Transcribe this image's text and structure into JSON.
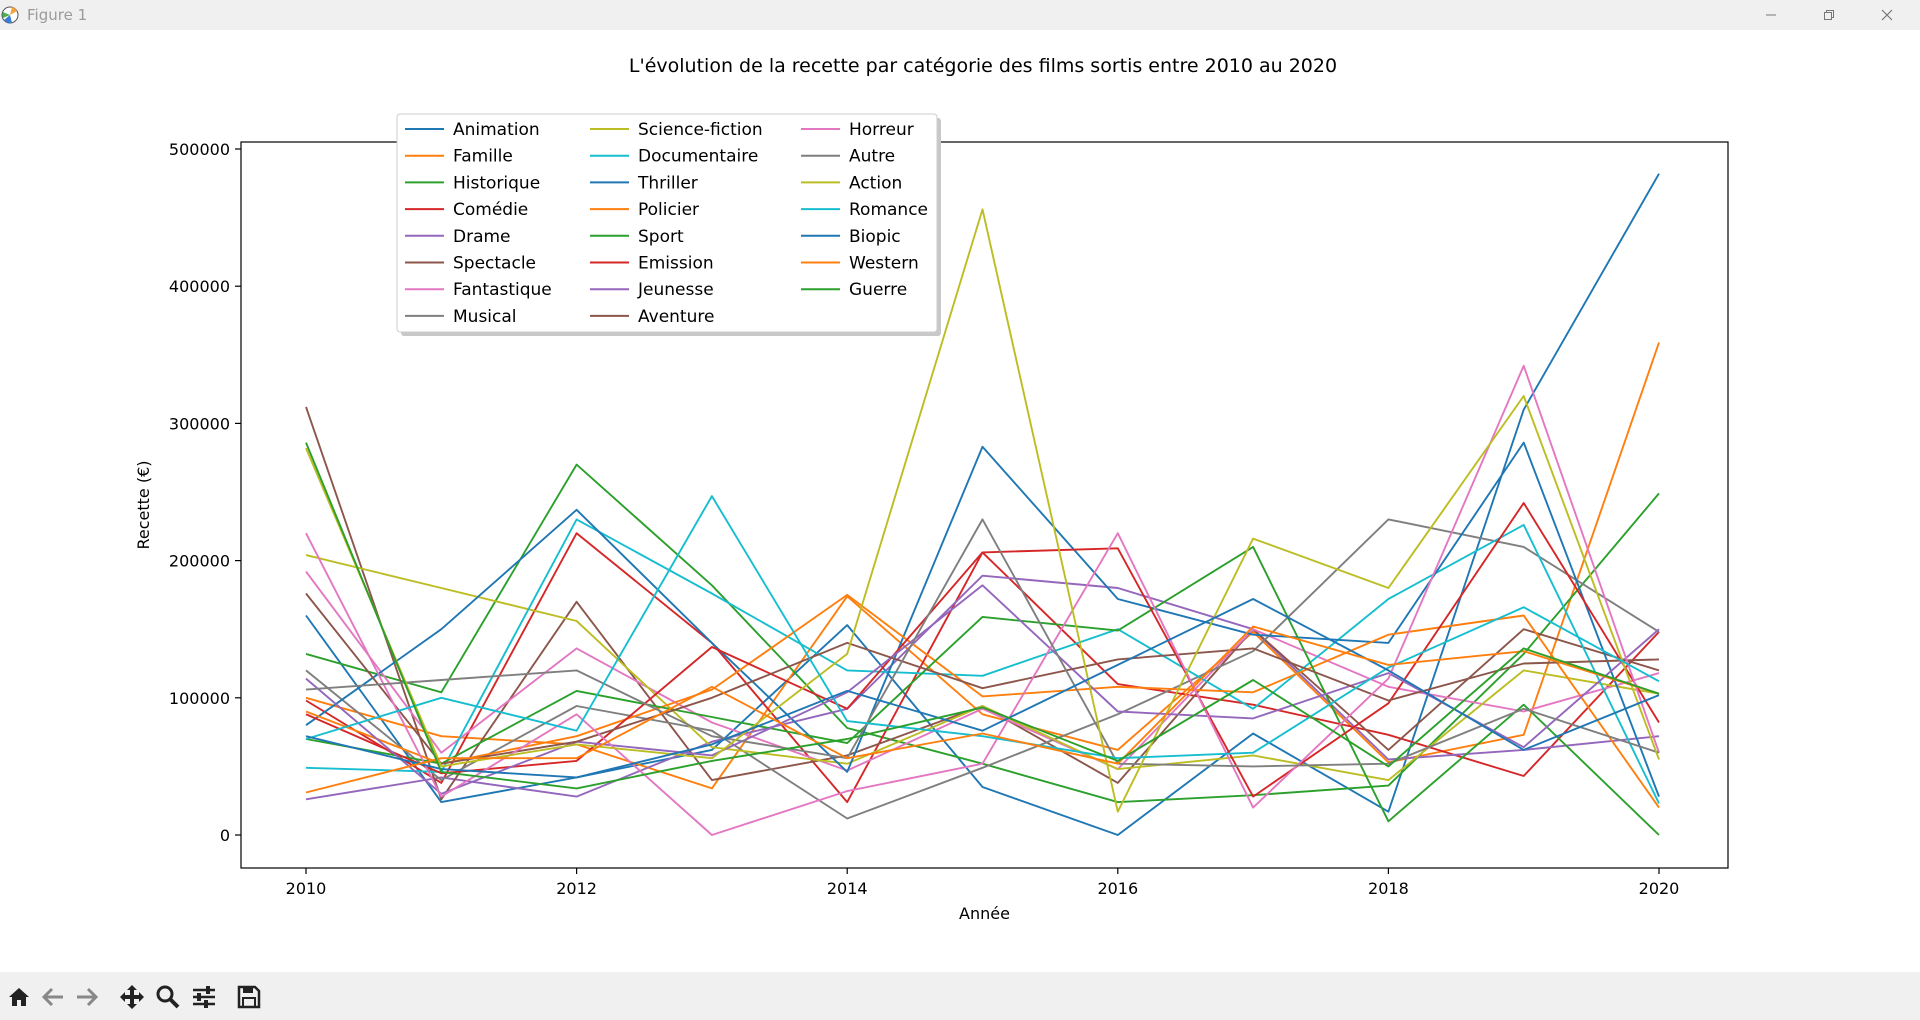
{
  "window": {
    "title": "Figure 1"
  },
  "toolbar": {
    "icons": [
      "home-icon",
      "back-icon",
      "forward-icon",
      "pan-icon",
      "zoom-icon",
      "configure-icon",
      "save-icon"
    ]
  },
  "chart_data": {
    "type": "line",
    "title": "L'évolution de la recette par catégorie des films sortis entre 2010 au 2020",
    "xlabel": "Année",
    "ylabel": "Recette (€)",
    "xlim": [
      2010,
      2020
    ],
    "ylim": [
      0,
      500000
    ],
    "xticks": [
      "2010",
      "2012",
      "2014",
      "2016",
      "2018",
      "2020"
    ],
    "yticks": [
      "0",
      "100000",
      "200000",
      "300000",
      "400000",
      "500000"
    ],
    "grid": false,
    "legend": "top-left, 3 columns",
    "x": [
      2010,
      2011,
      2012,
      2013,
      2014,
      2015,
      2016,
      2017,
      2018,
      2019,
      2020
    ],
    "series": [
      {
        "name": "Animation",
        "color": "#1f77b4",
        "values": [
          160000,
          24000,
          42000,
          62000,
          153000,
          35000,
          0,
          74000,
          17000,
          310000,
          482000
        ]
      },
      {
        "name": "Famille",
        "color": "#ff7f0e",
        "values": [
          100000,
          72000,
          66000,
          34000,
          174000,
          88000,
          62000,
          148000,
          53000,
          73000,
          359000
        ]
      },
      {
        "name": "Historique",
        "color": "#2ca02c",
        "values": [
          132000,
          104000,
          270000,
          182000,
          78000,
          52000,
          24000,
          29000,
          36000,
          132000,
          249000
        ]
      },
      {
        "name": "Comédie",
        "color": "#d62728",
        "values": [
          98000,
          38000,
          220000,
          140000,
          24000,
          206000,
          110000,
          95000,
          73000,
          43000,
          148000
        ]
      },
      {
        "name": "Drame",
        "color": "#9467bd",
        "values": [
          26000,
          42000,
          28000,
          68000,
          92000,
          189000,
          180000,
          150000,
          55000,
          62000,
          72000
        ]
      },
      {
        "name": "Spectacle",
        "color": "#8c564b",
        "values": [
          312000,
          26000,
          170000,
          40000,
          58000,
          94000,
          38000,
          150000,
          62000,
          150000,
          120000
        ]
      },
      {
        "name": "Fantastique",
        "color": "#e377c2",
        "values": [
          192000,
          60000,
          136000,
          82000,
          47000,
          92000,
          48000,
          150000,
          108000,
          90000,
          118000
        ]
      },
      {
        "name": "Musical",
        "color": "#7f7f7f",
        "values": [
          120000,
          40000,
          94000,
          76000,
          12000,
          49000,
          88000,
          134000,
          230000,
          210000,
          148000
        ]
      },
      {
        "name": "Science-fiction",
        "color": "#bcbd22",
        "values": [
          204000,
          180000,
          156000,
          64000,
          52000,
          94000,
          48000,
          58000,
          40000,
          120000,
          103000
        ]
      },
      {
        "name": "Documentaire",
        "color": "#17becf",
        "values": [
          49000,
          46000,
          230000,
          176000,
          120000,
          116000,
          150000,
          92000,
          172000,
          226000,
          23000
        ]
      },
      {
        "name": "Thriller",
        "color": "#1f77b4",
        "values": [
          80000,
          150000,
          237000,
          140000,
          46000,
          283000,
          172000,
          146000,
          140000,
          286000,
          28000
        ]
      },
      {
        "name": "Policier",
        "color": "#ff7f0e",
        "values": [
          90000,
          52000,
          72000,
          106000,
          175000,
          101000,
          108000,
          104000,
          146000,
          160000,
          20000
        ]
      },
      {
        "name": "Sport",
        "color": "#2ca02c",
        "values": [
          70000,
          52000,
          105000,
          86000,
          67000,
          159000,
          149000,
          210000,
          10000,
          95000,
          0
        ]
      },
      {
        "name": "Emission",
        "color": "#d62728",
        "values": [
          88000,
          45000,
          54000,
          137000,
          92000,
          206000,
          209000,
          28000,
          96000,
          242000,
          82000
        ]
      },
      {
        "name": "Jeunesse",
        "color": "#9467bd",
        "values": [
          114000,
          30000,
          68000,
          58000,
          104000,
          182000,
          90000,
          85000,
          118000,
          64000,
          150000
        ]
      },
      {
        "name": "Aventure",
        "color": "#8c564b",
        "values": [
          176000,
          52000,
          68000,
          100000,
          140000,
          107000,
          128000,
          136000,
          98000,
          125000,
          128000
        ]
      },
      {
        "name": "Horreur",
        "color": "#e377c2",
        "values": [
          220000,
          28000,
          88000,
          0,
          32000,
          52000,
          220000,
          20000,
          114000,
          342000,
          60000
        ]
      },
      {
        "name": "Autre",
        "color": "#7f7f7f",
        "values": [
          106000,
          113000,
          120000,
          72000,
          56000,
          230000,
          52000,
          50000,
          52000,
          92000,
          60000
        ]
      },
      {
        "name": "Action",
        "color": "#bcbd22",
        "values": [
          282000,
          50000,
          66000,
          56000,
          132000,
          456000,
          17000,
          216000,
          180000,
          320000,
          55000
        ]
      },
      {
        "name": "Romance",
        "color": "#17becf",
        "values": [
          70000,
          100000,
          76000,
          247000,
          83000,
          72000,
          56000,
          60000,
          122000,
          166000,
          112000
        ]
      },
      {
        "name": "Biopic",
        "color": "#1f77b4",
        "values": [
          72000,
          48000,
          42000,
          66000,
          105000,
          76000,
          124000,
          172000,
          120000,
          62000,
          102000
        ]
      },
      {
        "name": "Western",
        "color": "#ff7f0e",
        "values": [
          31000,
          56000,
          56000,
          108000,
          56000,
          74000,
          52000,
          152000,
          124000,
          134000,
          103000
        ]
      },
      {
        "name": "Guerre",
        "color": "#2ca02c",
        "values": [
          286000,
          46000,
          34000,
          54000,
          70000,
          93000,
          54000,
          113000,
          50000,
          136000,
          103000
        ]
      }
    ]
  }
}
